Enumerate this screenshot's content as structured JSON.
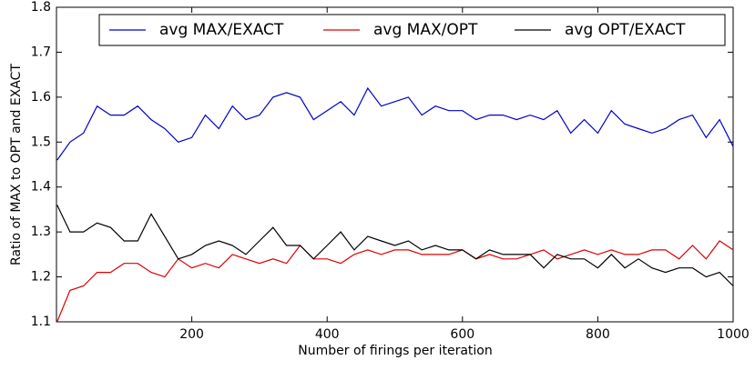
{
  "chart_data": {
    "type": "line",
    "xlabel": "Number of firings per iteration",
    "ylabel": "Ratio of MAX to OPT and EXACT",
    "x": [
      1,
      20,
      40,
      60,
      80,
      100,
      120,
      140,
      160,
      180,
      200,
      220,
      240,
      260,
      280,
      300,
      320,
      340,
      360,
      380,
      400,
      420,
      440,
      460,
      480,
      500,
      520,
      540,
      560,
      580,
      600,
      620,
      640,
      660,
      680,
      700,
      720,
      740,
      760,
      780,
      800,
      820,
      840,
      860,
      880,
      900,
      920,
      940,
      960,
      980,
      1000
    ],
    "series": [
      {
        "name": "avg MAX/EXACT",
        "color": "#0000cc",
        "values": [
          1.46,
          1.5,
          1.52,
          1.58,
          1.56,
          1.56,
          1.58,
          1.55,
          1.53,
          1.5,
          1.51,
          1.56,
          1.53,
          1.58,
          1.55,
          1.56,
          1.6,
          1.61,
          1.6,
          1.55,
          1.57,
          1.59,
          1.56,
          1.62,
          1.58,
          1.59,
          1.6,
          1.56,
          1.58,
          1.57,
          1.57,
          1.55,
          1.56,
          1.56,
          1.55,
          1.56,
          1.55,
          1.57,
          1.52,
          1.55,
          1.52,
          1.57,
          1.54,
          1.53,
          1.52,
          1.53,
          1.55,
          1.56,
          1.51,
          1.55,
          1.49
        ]
      },
      {
        "name": "avg MAX/OPT",
        "color": "#dd0000",
        "values": [
          1.1,
          1.17,
          1.18,
          1.21,
          1.21,
          1.23,
          1.23,
          1.21,
          1.2,
          1.24,
          1.22,
          1.23,
          1.22,
          1.25,
          1.24,
          1.23,
          1.24,
          1.23,
          1.27,
          1.24,
          1.24,
          1.23,
          1.25,
          1.26,
          1.25,
          1.26,
          1.26,
          1.25,
          1.25,
          1.25,
          1.26,
          1.24,
          1.25,
          1.24,
          1.24,
          1.25,
          1.26,
          1.24,
          1.25,
          1.26,
          1.25,
          1.26,
          1.25,
          1.25,
          1.26,
          1.26,
          1.24,
          1.27,
          1.24,
          1.28,
          1.26
        ]
      },
      {
        "name": "avg OPT/EXACT",
        "color": "#000000",
        "values": [
          1.36,
          1.3,
          1.3,
          1.32,
          1.31,
          1.28,
          1.28,
          1.34,
          1.29,
          1.24,
          1.25,
          1.27,
          1.28,
          1.27,
          1.25,
          1.28,
          1.31,
          1.27,
          1.27,
          1.24,
          1.27,
          1.3,
          1.26,
          1.29,
          1.28,
          1.27,
          1.28,
          1.26,
          1.27,
          1.26,
          1.26,
          1.24,
          1.26,
          1.25,
          1.25,
          1.25,
          1.22,
          1.25,
          1.24,
          1.24,
          1.22,
          1.25,
          1.22,
          1.24,
          1.22,
          1.21,
          1.22,
          1.22,
          1.2,
          1.21,
          1.18
        ]
      }
    ],
    "xlim": [
      0,
      1000
    ],
    "xticks": [
      200,
      400,
      600,
      800,
      1000
    ],
    "ylim": [
      1.1,
      1.8
    ],
    "yticks": [
      1.1,
      1.2,
      1.3,
      1.4,
      1.5,
      1.6,
      1.7,
      1.8
    ],
    "grid": false,
    "legend": "top"
  }
}
